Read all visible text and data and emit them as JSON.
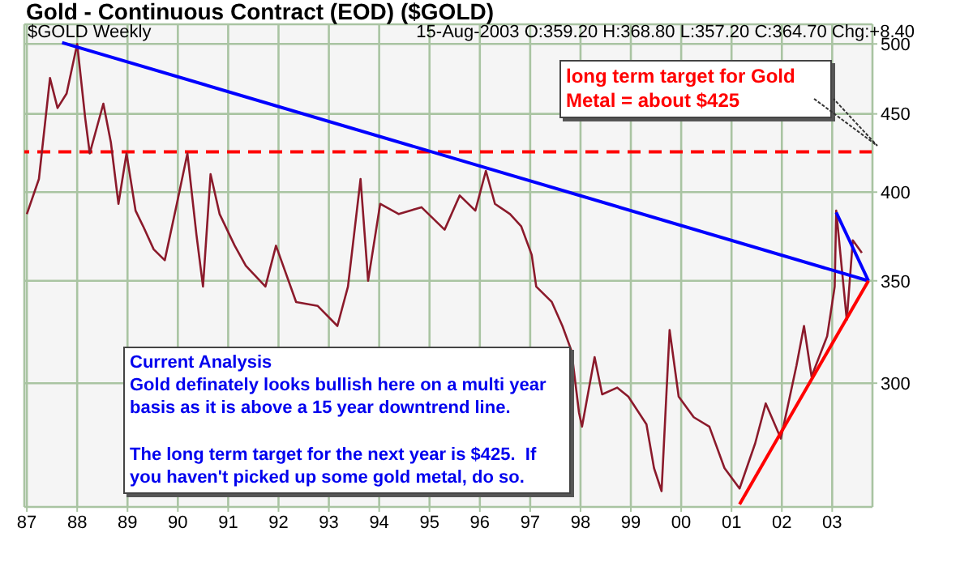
{
  "chart_data": {
    "type": "line",
    "title": "Gold - Continuous Contract (EOD) ($GOLD)",
    "subtitle": "$GOLD Weekly",
    "annotations": [
      "15-Aug-2003 O:359.20 H:368.80 L:357.20 C:364.70 Chg:+8.40",
      "long term target for Gold\nMetal = about $425",
      "Current Analysis\nGold definately looks bullish here on a multi year\nbasis as it is above a 15 year downtrend line.\n\nThe long term target for the next year is $425.  If\nyou haven't picked up some gold metal, do so."
    ],
    "x": [
      1987.0,
      1987.24,
      1987.46,
      1987.61,
      1987.79,
      1988.0,
      1988.16,
      1988.25,
      1988.52,
      1988.67,
      1988.82,
      1988.98,
      1989.16,
      1989.31,
      1989.52,
      1989.74,
      1989.98,
      1990.19,
      1990.37,
      1990.5,
      1990.65,
      1990.83,
      1991.13,
      1991.35,
      1991.74,
      1991.95,
      1992.35,
      1992.78,
      1993.17,
      1993.38,
      1993.63,
      1993.78,
      1994.02,
      1994.39,
      1994.84,
      1995.3,
      1995.6,
      1995.91,
      1996.12,
      1996.3,
      1996.6,
      1996.82,
      1997.03,
      1997.12,
      1997.43,
      1997.64,
      1997.82,
      1997.97,
      1998.03,
      1998.28,
      1998.43,
      1998.73,
      1998.95,
      1999.31,
      1999.46,
      1999.61,
      1999.77,
      1999.95,
      2000.25,
      2000.56,
      2000.86,
      2001.16,
      2001.47,
      2001.68,
      2001.98,
      2002.29,
      2002.44,
      2002.59,
      2002.9,
      2003.05,
      2003.08,
      2003.29,
      2003.41,
      2003.59
    ],
    "series": [
      {
        "color": "#8b1a2b",
        "values": [
          387,
          408,
          475,
          454,
          464,
          500,
          447,
          424,
          457,
          431,
          393,
          424,
          389,
          380,
          367,
          361,
          393,
          424,
          375,
          347,
          411,
          387,
          369,
          358,
          347,
          369,
          339,
          337,
          327,
          347,
          408,
          350,
          393,
          387,
          391,
          378,
          398,
          389,
          413,
          393,
          387,
          380,
          364,
          347,
          339,
          327,
          315,
          287,
          281,
          312,
          295,
          298,
          294,
          282,
          264,
          255,
          325,
          294,
          285,
          281,
          264,
          256,
          274,
          291,
          276,
          308,
          327,
          303,
          322,
          347,
          389,
          330,
          372,
          365
        ]
      },
      {
        "type": "line",
        "color": "#0000ff",
        "x": [
          1987.7,
          2003.72
        ],
        "values": [
          501,
          350
        ]
      },
      {
        "type": "line",
        "color": "#0000ff",
        "x": [
          2003.08,
          2003.72
        ],
        "values": [
          388,
          350
        ]
      },
      {
        "type": "line",
        "color": "#ff0000",
        "x": [
          2001.16,
          2003.72
        ],
        "values": [
          250,
          350
        ]
      }
    ],
    "xlim": [
      1986.95,
      2003.8
    ],
    "xticks": [
      {
        "value": 1987,
        "label": "87"
      },
      {
        "value": 1988,
        "label": "88"
      },
      {
        "value": 1989,
        "label": "89"
      },
      {
        "value": 1990,
        "label": "90"
      },
      {
        "value": 1991,
        "label": "91"
      },
      {
        "value": 1992,
        "label": "92"
      },
      {
        "value": 1993,
        "label": "93"
      },
      {
        "value": 1994,
        "label": "94"
      },
      {
        "value": 1995,
        "label": "95"
      },
      {
        "value": 1996,
        "label": "96"
      },
      {
        "value": 1997,
        "label": "97"
      },
      {
        "value": 1998,
        "label": "98"
      },
      {
        "value": 1999,
        "label": "99"
      },
      {
        "value": 2000,
        "label": "00"
      },
      {
        "value": 2001,
        "label": "01"
      },
      {
        "value": 2002,
        "label": "02"
      },
      {
        "value": 2003,
        "label": "03"
      }
    ],
    "ylim": [
      249,
      515
    ],
    "yticks": [
      300,
      350,
      400,
      450,
      500
    ],
    "log": "y",
    "grid": true,
    "marker": "none",
    "line_style": "solid",
    "ref_lines": [
      {
        "axis": "y",
        "value": 425,
        "color": "#ff0000",
        "line_style": "dashed"
      }
    ]
  }
}
